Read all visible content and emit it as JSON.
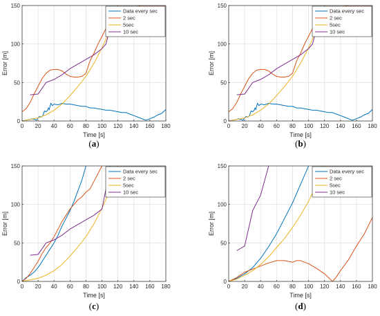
{
  "colors": {
    "series": [
      "#0072BD",
      "#D95319",
      "#EDB120",
      "#7E2F8E"
    ]
  },
  "chart_data": [
    {
      "type": "line",
      "panel_label": "a",
      "xlabel": "Time [s]",
      "ylabel": "Error [m]",
      "xlim": [
        0,
        180
      ],
      "ylim": [
        0,
        150
      ],
      "xticks": [
        0,
        20,
        40,
        60,
        80,
        100,
        120,
        140,
        160,
        180
      ],
      "yticks": [
        0,
        50,
        100,
        150
      ],
      "grid": true,
      "legend_position": "top-right",
      "series": [
        {
          "name": "Data every sec",
          "x": [
            0,
            5,
            10,
            12,
            14,
            16,
            18,
            20,
            22,
            24,
            25,
            26,
            27,
            28,
            30,
            32,
            33,
            34,
            36,
            38,
            40,
            45,
            50,
            55,
            60,
            65,
            70,
            75,
            80,
            85,
            90,
            95,
            100,
            105,
            110,
            115,
            120,
            125,
            130,
            135,
            140,
            145,
            150,
            155,
            160,
            165,
            170,
            175,
            180
          ],
          "y": [
            0,
            1,
            2,
            3,
            2,
            2,
            1,
            4,
            6,
            5,
            6,
            7,
            10,
            13,
            12,
            14,
            17,
            15,
            23,
            20,
            22,
            21,
            23,
            22,
            22,
            21,
            20,
            19,
            19,
            17,
            17,
            16,
            15,
            14,
            14,
            13,
            12,
            11,
            11,
            9,
            7,
            5,
            3,
            1,
            3,
            5,
            8,
            10,
            15
          ]
        },
        {
          "name": "2 sec",
          "x": [
            0,
            5,
            10,
            15,
            20,
            25,
            30,
            35,
            40,
            45,
            50,
            55,
            60,
            65,
            70,
            75,
            80,
            85,
            90,
            95,
            100,
            105,
            110,
            120,
            130,
            140,
            150,
            160,
            170,
            180
          ],
          "y": [
            12,
            16,
            24,
            35,
            45,
            55,
            62,
            66,
            67,
            67,
            65,
            61,
            58,
            57,
            57,
            58,
            62,
            78,
            88,
            100,
            110,
            120,
            130,
            140,
            145,
            148,
            150,
            150,
            150,
            150
          ]
        },
        {
          "name": "5sec",
          "x": [
            0,
            10,
            20,
            30,
            40,
            50,
            60,
            70,
            80,
            90,
            100,
            110,
            120
          ],
          "y": [
            0,
            2,
            4,
            8,
            14,
            22,
            33,
            45,
            58,
            75,
            95,
            118,
            150
          ]
        },
        {
          "name": "10 sec",
          "x": [
            10,
            20,
            30,
            40,
            50,
            60,
            70,
            80,
            90,
            100,
            105,
            110,
            120
          ],
          "y": [
            34,
            35,
            50,
            54,
            60,
            68,
            74,
            80,
            86,
            94,
            100,
            120,
            150
          ]
        }
      ]
    },
    {
      "type": "line",
      "panel_label": "b",
      "xlabel": "Time [s]",
      "ylabel": "Error [m]",
      "xlim": [
        0,
        180
      ],
      "ylim": [
        0,
        150
      ],
      "xticks": [
        0,
        20,
        40,
        60,
        80,
        100,
        120,
        140,
        160,
        180
      ],
      "yticks": [
        0,
        50,
        100,
        150
      ],
      "grid": true,
      "legend_position": "top-right",
      "series": [
        {
          "name": "Data every sec",
          "x": [
            0,
            5,
            10,
            12,
            14,
            16,
            18,
            20,
            22,
            24,
            25,
            26,
            27,
            28,
            30,
            32,
            33,
            34,
            36,
            38,
            40,
            45,
            50,
            55,
            60,
            65,
            70,
            75,
            80,
            85,
            90,
            95,
            100,
            105,
            110,
            115,
            120,
            125,
            130,
            135,
            140,
            145,
            150,
            155,
            160,
            165,
            170,
            175,
            180
          ],
          "y": [
            0,
            1,
            2,
            3,
            2,
            2,
            1,
            4,
            6,
            5,
            6,
            7,
            10,
            13,
            12,
            14,
            17,
            15,
            23,
            20,
            22,
            21,
            23,
            22,
            22,
            21,
            20,
            19,
            19,
            17,
            17,
            16,
            15,
            14,
            14,
            13,
            12,
            11,
            11,
            9,
            7,
            5,
            3,
            1,
            3,
            5,
            8,
            10,
            15
          ]
        },
        {
          "name": "2 sec",
          "x": [
            0,
            5,
            10,
            15,
            20,
            25,
            30,
            35,
            40,
            45,
            50,
            55,
            60,
            65,
            70,
            75,
            80,
            85,
            90,
            95,
            100,
            105,
            110,
            120,
            130,
            140,
            150,
            160,
            170,
            180
          ],
          "y": [
            12,
            16,
            24,
            35,
            45,
            55,
            62,
            66,
            67,
            67,
            65,
            61,
            58,
            57,
            57,
            58,
            62,
            78,
            88,
            100,
            110,
            120,
            130,
            140,
            145,
            148,
            150,
            150,
            150,
            150
          ]
        },
        {
          "name": "5sec",
          "x": [
            0,
            10,
            20,
            30,
            40,
            50,
            60,
            70,
            80,
            90,
            100,
            110,
            120
          ],
          "y": [
            0,
            2,
            4,
            8,
            14,
            22,
            33,
            45,
            58,
            75,
            95,
            118,
            150
          ]
        },
        {
          "name": "10 sec",
          "x": [
            10,
            20,
            30,
            40,
            50,
            60,
            70,
            80,
            90,
            100,
            105,
            110,
            120
          ],
          "y": [
            34,
            35,
            50,
            54,
            60,
            68,
            74,
            80,
            86,
            94,
            100,
            120,
            150
          ]
        }
      ]
    },
    {
      "type": "line",
      "panel_label": "c",
      "xlabel": "Time [s]",
      "ylabel": "Error [m]",
      "xlim": [
        0,
        180
      ],
      "ylim": [
        0,
        150
      ],
      "xticks": [
        0,
        20,
        40,
        60,
        80,
        100,
        120,
        140,
        160,
        180
      ],
      "yticks": [
        0,
        50,
        100,
        150
      ],
      "grid": true,
      "legend_position": "top-right",
      "series": [
        {
          "name": "Data every sec",
          "x": [
            0,
            5,
            10,
            15,
            20,
            25,
            30,
            35,
            40,
            45,
            50,
            55,
            60,
            65,
            70,
            75,
            80
          ],
          "y": [
            0,
            5,
            8,
            12,
            18,
            26,
            34,
            42,
            50,
            60,
            72,
            82,
            92,
            104,
            118,
            132,
            150
          ]
        },
        {
          "name": "2 sec",
          "x": [
            0,
            5,
            10,
            15,
            20,
            25,
            30,
            35,
            40,
            45,
            50,
            55,
            60,
            65,
            70,
            75,
            80,
            85,
            90,
            95,
            100
          ],
          "y": [
            0,
            4,
            10,
            18,
            26,
            36,
            44,
            50,
            58,
            68,
            78,
            86,
            94,
            100,
            106,
            110,
            116,
            120,
            130,
            140,
            150
          ]
        },
        {
          "name": "5sec",
          "x": [
            0,
            10,
            20,
            30,
            40,
            50,
            60,
            70,
            80,
            90,
            100,
            110,
            120
          ],
          "y": [
            0,
            2,
            4,
            8,
            14,
            22,
            33,
            45,
            58,
            75,
            95,
            118,
            150
          ]
        },
        {
          "name": "10 sec",
          "x": [
            10,
            20,
            30,
            40,
            50,
            60,
            70,
            80,
            90,
            100,
            105,
            110
          ],
          "y": [
            34,
            35,
            50,
            54,
            60,
            68,
            74,
            80,
            86,
            94,
            120,
            150
          ]
        }
      ]
    },
    {
      "type": "line",
      "panel_label": "d",
      "xlabel": "Time [s]",
      "ylabel": "Error [m]",
      "xlim": [
        0,
        180
      ],
      "ylim": [
        0,
        150
      ],
      "xticks": [
        0,
        20,
        40,
        60,
        80,
        100,
        120,
        140,
        160,
        180
      ],
      "yticks": [
        0,
        50,
        100,
        150
      ],
      "grid": true,
      "legend_position": "top-right",
      "series": [
        {
          "name": "Data every sec",
          "x": [
            0,
            10,
            20,
            30,
            40,
            50,
            60,
            70,
            80,
            90,
            100
          ],
          "y": [
            0,
            4,
            10,
            18,
            30,
            45,
            62,
            82,
            102,
            126,
            150
          ]
        },
        {
          "name": "2 sec",
          "x": [
            0,
            10,
            20,
            30,
            40,
            50,
            60,
            70,
            80,
            85,
            90,
            95,
            100,
            110,
            120,
            125,
            130,
            135,
            140,
            150,
            160,
            170,
            180
          ],
          "y": [
            0,
            5,
            12,
            16,
            20,
            24,
            27,
            27,
            25,
            27,
            27,
            25,
            23,
            17,
            10,
            5,
            0,
            6,
            14,
            28,
            46,
            62,
            83
          ]
        },
        {
          "name": "5sec",
          "x": [
            0,
            10,
            20,
            30,
            40,
            50,
            60,
            70,
            80,
            90,
            100,
            110,
            120
          ],
          "y": [
            0,
            3,
            8,
            14,
            22,
            32,
            44,
            56,
            70,
            86,
            104,
            126,
            150
          ]
        },
        {
          "name": "10 sec",
          "x": [
            10,
            20,
            30,
            40,
            50
          ],
          "y": [
            40,
            46,
            92,
            112,
            150
          ]
        }
      ]
    }
  ]
}
